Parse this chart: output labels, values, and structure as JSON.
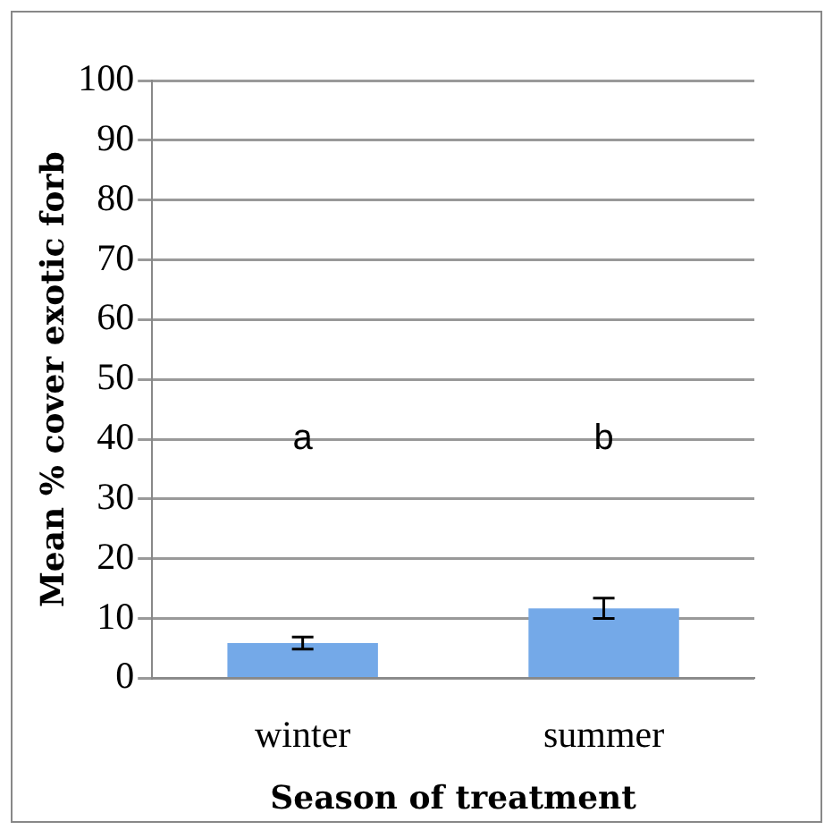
{
  "chart_data": {
    "type": "bar",
    "xlabel": "Season of treatment",
    "ylabel": "Mean % cover exotic forb",
    "categories": [
      "winter",
      "summer"
    ],
    "values": [
      5.9,
      11.7
    ],
    "errors": [
      1.0,
      1.7
    ],
    "color": "#74a9e8",
    "ylim": [
      0,
      100
    ],
    "yticks": [
      0,
      10,
      20,
      30,
      40,
      50,
      60,
      70,
      80,
      90,
      100
    ],
    "grid": "y",
    "annotations": [
      "a",
      "b"
    ]
  }
}
